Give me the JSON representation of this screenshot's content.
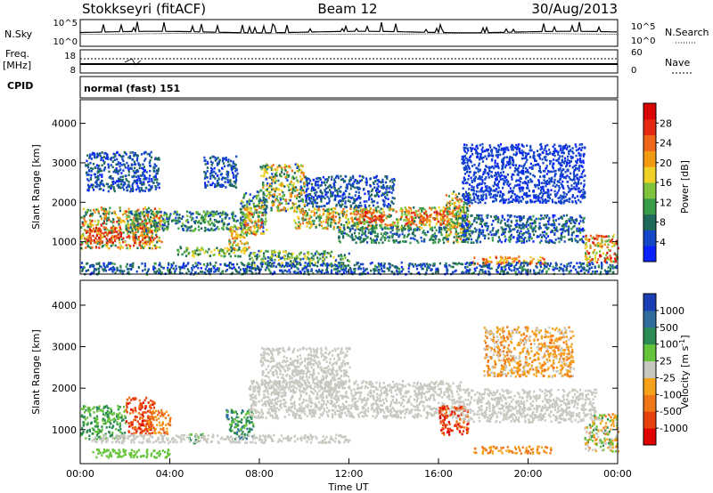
{
  "header": {
    "station": "Stokkseyri (fitACF)",
    "beam": "Beam 12",
    "date": "30/Aug/2013"
  },
  "strip_panels": {
    "nsky_label": "N.Sky",
    "nsky_ticks": [
      "10^5",
      "10^0"
    ],
    "nsearch_label": "N.Search",
    "nsearch_ticks": [
      "10^5",
      "10^0"
    ],
    "freq_label": "Freq.",
    "freq_unit": "[MHz]",
    "freq_ticks": [
      "18",
      "8"
    ],
    "nave_label": "Nave",
    "nave_ticks": [
      "60",
      "0"
    ],
    "cpid_label": "CPID",
    "cpid_value": "normal (fast) 151"
  },
  "chart_data": [
    {
      "type": "heatmap",
      "name": "power",
      "xlabel": "",
      "ylabel": "Slant Range [km]",
      "x_ticks": [
        "00:00",
        "04:00",
        "08:00",
        "12:00",
        "16:00",
        "20:00",
        "00:00"
      ],
      "xlim_hours": [
        0,
        24
      ],
      "y_ticks": [
        1000,
        2000,
        3000,
        4000
      ],
      "ylim": [
        180,
        4600
      ],
      "colorbar": {
        "label": "Power [dB]",
        "ticks": [
          "4",
          "8",
          "12",
          "16",
          "20",
          "24",
          "28"
        ],
        "colors": [
          "#0a22ff",
          "#1446c8",
          "#206a5c",
          "#3a9b4a",
          "#7fc23c",
          "#f0d226",
          "#f29b12",
          "#f0661a",
          "#e52a12",
          "#d90404"
        ]
      },
      "scatter_regions": [
        {
          "t": [
            0.0,
            3.6
          ],
          "r": [
            850,
            1900
          ],
          "level": [
            6,
            26
          ]
        },
        {
          "t": [
            0.2,
            1.8
          ],
          "r": [
            1000,
            1400
          ],
          "level": [
            20,
            30
          ]
        },
        {
          "t": [
            2.3,
            3.2
          ],
          "r": [
            1000,
            1500
          ],
          "level": [
            18,
            28
          ]
        },
        {
          "t": [
            2.0,
            7.0
          ],
          "r": [
            1300,
            1800
          ],
          "level": [
            4,
            14
          ]
        },
        {
          "t": [
            0.2,
            3.5
          ],
          "r": [
            2300,
            3300
          ],
          "level": [
            2,
            8
          ]
        },
        {
          "t": [
            4.3,
            7.3
          ],
          "r": [
            650,
            900
          ],
          "level": [
            6,
            18
          ]
        },
        {
          "t": [
            5.5,
            7.0
          ],
          "r": [
            2400,
            3200
          ],
          "level": [
            2,
            8
          ]
        },
        {
          "t": [
            6.6,
            7.5
          ],
          "r": [
            800,
            1400
          ],
          "level": [
            10,
            24
          ]
        },
        {
          "t": [
            7.1,
            8.3
          ],
          "r": [
            1200,
            2300
          ],
          "level": [
            4,
            16
          ]
        },
        {
          "t": [
            7.3,
            8.1
          ],
          "r": [
            1200,
            1900
          ],
          "level": [
            14,
            26
          ]
        },
        {
          "t": [
            8.0,
            10.0
          ],
          "r": [
            1800,
            3000
          ],
          "level": [
            4,
            22
          ]
        },
        {
          "t": [
            9.5,
            17.0
          ],
          "r": [
            1350,
            1900
          ],
          "level": [
            6,
            24
          ]
        },
        {
          "t": [
            12.3,
            13.5
          ],
          "r": [
            1500,
            1800
          ],
          "level": [
            20,
            28
          ]
        },
        {
          "t": [
            14.5,
            16.5
          ],
          "r": [
            1450,
            1800
          ],
          "level": [
            18,
            27
          ]
        },
        {
          "t": [
            10.0,
            14.0
          ],
          "r": [
            1900,
            2700
          ],
          "level": [
            2,
            8
          ]
        },
        {
          "t": [
            7.5,
            12.0
          ],
          "r": [
            400,
            800
          ],
          "level": [
            4,
            18
          ]
        },
        {
          "t": [
            11.5,
            16.5
          ],
          "r": [
            1000,
            1400
          ],
          "level": [
            4,
            12
          ]
        },
        {
          "t": [
            16.3,
            17.4
          ],
          "r": [
            1000,
            2300
          ],
          "level": [
            6,
            24
          ]
        },
        {
          "t": [
            17.0,
            22.5
          ],
          "r": [
            1000,
            1700
          ],
          "level": [
            2,
            10
          ]
        },
        {
          "t": [
            17.0,
            22.5
          ],
          "r": [
            2000,
            3500
          ],
          "level": [
            2,
            6
          ]
        },
        {
          "t": [
            17.4,
            20.8
          ],
          "r": [
            450,
            650
          ],
          "level": [
            16,
            26
          ]
        },
        {
          "t": [
            22.5,
            24.0
          ],
          "r": [
            500,
            1200
          ],
          "level": [
            10,
            28
          ]
        },
        {
          "t": [
            0.0,
            24.0
          ],
          "r": [
            200,
            500
          ],
          "level": [
            2,
            10
          ]
        }
      ]
    },
    {
      "type": "heatmap",
      "name": "velocity",
      "xlabel": "Time UT",
      "ylabel": "Slant Range [km]",
      "x_ticks": [
        "00:00",
        "04:00",
        "08:00",
        "12:00",
        "16:00",
        "20:00",
        "00:00"
      ],
      "xlim_hours": [
        0,
        24
      ],
      "y_ticks": [
        1000,
        2000,
        3000,
        4000
      ],
      "ylim": [
        180,
        4600
      ],
      "colorbar": {
        "label": "Velocity [m s^-1]",
        "ticks": [
          "1000",
          "500",
          "100",
          "25",
          "-25",
          "-100",
          "-500",
          "-1000"
        ],
        "colors": [
          "#1a3fb5",
          "#2e6d9e",
          "#2c8a55",
          "#66c43a",
          "#c8c8c0",
          "#f5a21a",
          "#f0761a",
          "#e8400c",
          "#e00000"
        ]
      },
      "scatter_regions": [
        {
          "t": [
            0.0,
            2.0
          ],
          "r": [
            800,
            1600
          ],
          "level": [
            2,
            3
          ]
        },
        {
          "t": [
            2.0,
            3.3
          ],
          "r": [
            900,
            1800
          ],
          "level": [
            6,
            8
          ]
        },
        {
          "t": [
            3.0,
            4.0
          ],
          "r": [
            900,
            1500
          ],
          "level": [
            5,
            7
          ]
        },
        {
          "t": [
            4.8,
            5.5
          ],
          "r": [
            700,
            950
          ],
          "level": [
            2,
            3
          ]
        },
        {
          "t": [
            6.5,
            7.7
          ],
          "r": [
            800,
            1500
          ],
          "level": [
            1,
            3
          ]
        },
        {
          "t": [
            7.5,
            17.0
          ],
          "r": [
            1300,
            2200
          ],
          "level": [
            4,
            4
          ]
        },
        {
          "t": [
            8.0,
            12.0
          ],
          "r": [
            2000,
            3000
          ],
          "level": [
            4,
            4
          ]
        },
        {
          "t": [
            0.5,
            12.0
          ],
          "r": [
            700,
            900
          ],
          "level": [
            4,
            4
          ]
        },
        {
          "t": [
            16.0,
            17.3
          ],
          "r": [
            900,
            1600
          ],
          "level": [
            6,
            8
          ]
        },
        {
          "t": [
            17.0,
            23.0
          ],
          "r": [
            1200,
            2000
          ],
          "level": [
            4,
            4
          ]
        },
        {
          "t": [
            17.5,
            21.0
          ],
          "r": [
            450,
            620
          ],
          "level": [
            5,
            6
          ]
        },
        {
          "t": [
            18.0,
            22.0
          ],
          "r": [
            2300,
            3500
          ],
          "level": [
            4,
            6
          ]
        },
        {
          "t": [
            22.5,
            24.0
          ],
          "r": [
            500,
            1400
          ],
          "level": [
            2,
            6
          ]
        },
        {
          "t": [
            0.5,
            4.0
          ],
          "r": [
            350,
            550
          ],
          "level": [
            3,
            3
          ]
        }
      ]
    }
  ]
}
